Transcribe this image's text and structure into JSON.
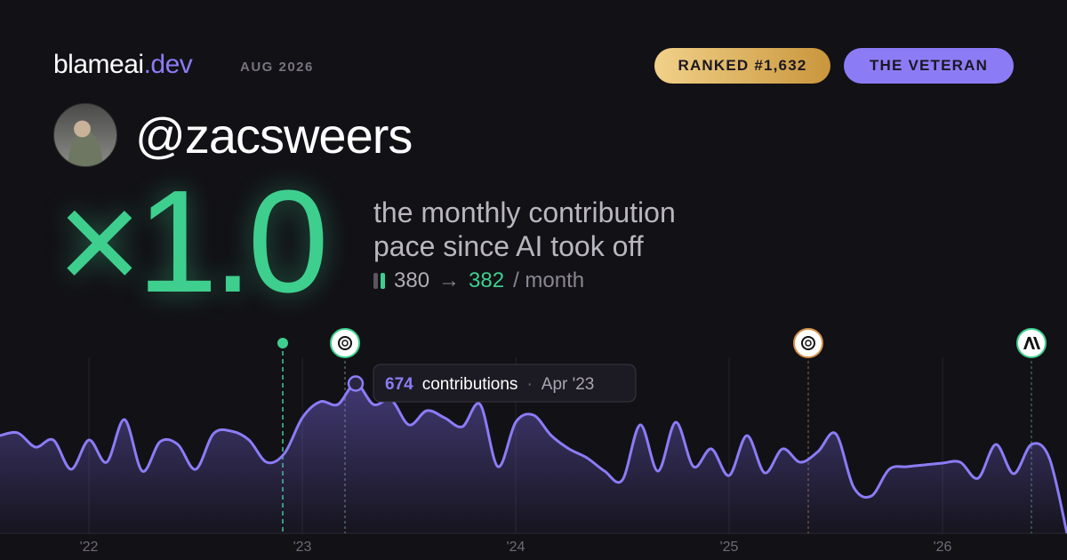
{
  "header": {
    "brand": "blameai",
    "brand_suffix": ".dev",
    "date": "AUG 2026",
    "badges": [
      "RANKED #1,632",
      "THE VETERAN"
    ]
  },
  "profile": {
    "handle": "@zacsweers"
  },
  "summary": {
    "multiplier": "×1.0",
    "description": [
      "the monthly contribution",
      "pace since AI took off"
    ],
    "before": "380",
    "arrow": "→",
    "after": "382",
    "unit": "/ month"
  },
  "chart_data": {
    "type": "area",
    "categories": [
      null,
      null,
      null,
      null,
      null,
      "'22",
      null,
      null,
      null,
      null,
      null,
      null,
      null,
      null,
      null,
      null,
      null,
      "'23",
      null,
      null,
      null,
      null,
      null,
      null,
      null,
      null,
      null,
      null,
      null,
      "'24",
      null,
      null,
      null,
      null,
      null,
      null,
      null,
      null,
      null,
      null,
      null,
      "'25",
      null,
      null,
      null,
      null,
      null,
      null,
      null,
      null,
      null,
      null,
      null,
      "'26",
      null,
      null,
      null,
      null,
      null,
      null,
      null
    ],
    "values": [
      440,
      452,
      388,
      420,
      288,
      420,
      320,
      512,
      280,
      412,
      400,
      288,
      448,
      460,
      420,
      320,
      360,
      520,
      592,
      580,
      674,
      580,
      600,
      488,
      552,
      520,
      480,
      580,
      300,
      500,
      532,
      440,
      380,
      340,
      280,
      240,
      488,
      280,
      500,
      300,
      380,
      260,
      440,
      272,
      380,
      320,
      368,
      448,
      208,
      168,
      288,
      300,
      308,
      316,
      320,
      248,
      400,
      268,
      400,
      340,
      0
    ],
    "color": "#8b7cf6",
    "ylim": [
      0,
      800
    ],
    "grid": true,
    "tooltip": {
      "index": 20,
      "unit": "contributions",
      "date": "Apr '23"
    }
  }
}
